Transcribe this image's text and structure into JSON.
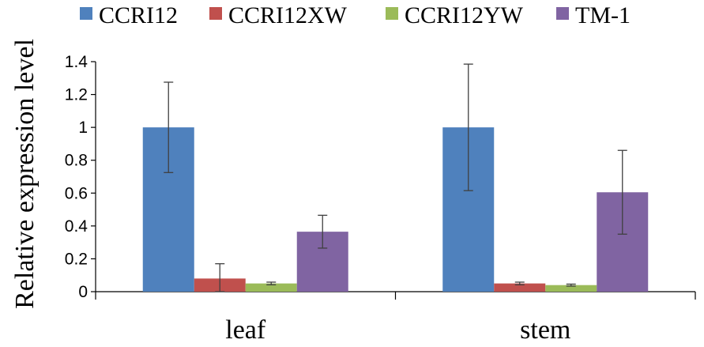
{
  "chart_data": {
    "type": "bar",
    "categories": [
      "leaf",
      "stem"
    ],
    "series": [
      {
        "name": "CCRI12",
        "color": "#4f81bd",
        "values": [
          1.0,
          1.0
        ],
        "errors": [
          0.275,
          0.385
        ]
      },
      {
        "name": "CCRI12XW",
        "color": "#c0504d",
        "values": [
          0.08,
          0.05
        ],
        "errors": [
          0.09,
          0.008
        ]
      },
      {
        "name": "CCRI12YW",
        "color": "#9bbb59",
        "values": [
          0.05,
          0.04
        ],
        "errors": [
          0.008,
          0.006
        ]
      },
      {
        "name": "TM-1",
        "color": "#8064a2",
        "values": [
          0.365,
          0.605
        ],
        "errors": [
          0.1,
          0.255
        ]
      }
    ],
    "yticks": [
      "0",
      "0.2",
      "0.4",
      "0.6",
      "0.8",
      "1",
      "1.2",
      "1.4"
    ],
    "ylim": [
      0,
      1.4
    ],
    "ylabel": "Relative  expression level",
    "xlabel": "",
    "grid": false,
    "legend_position": "top"
  }
}
